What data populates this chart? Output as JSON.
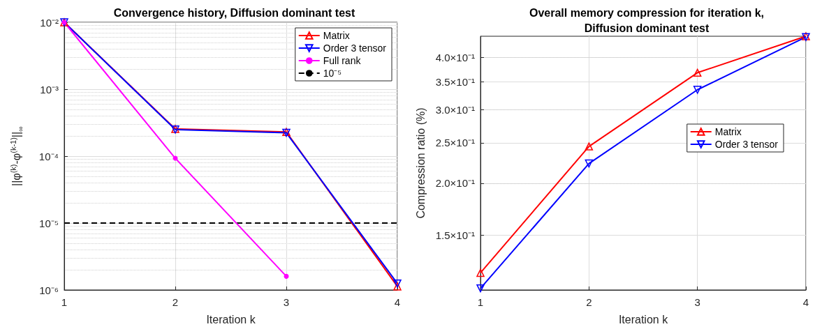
{
  "chart_data": [
    {
      "type": "line",
      "title": "Convergence history, Diffusion dominant test",
      "xlabel": "Iteration k",
      "ylabel": "||φ$^{(k)}$-φ$^{(k-1)}$||$_{∞}$",
      "x": [
        1,
        2,
        3,
        4
      ],
      "xlim": [
        1,
        4
      ],
      "xticks": [
        1,
        2,
        3,
        4
      ],
      "ylim": [
        1e-06,
        0.01
      ],
      "yticks": [
        {
          "value": 1e-06,
          "label": "10⁻⁶"
        },
        {
          "value": 1e-05,
          "label": "10⁻⁵"
        },
        {
          "value": 0.0001,
          "label": "10⁻⁴"
        },
        {
          "value": 0.001,
          "label": "10⁻³"
        },
        {
          "value": 0.01,
          "label": "10⁻²"
        }
      ],
      "log": "y",
      "grid": true,
      "legend": "top right",
      "series": [
        {
          "name": "Matrix",
          "color": "#ff0000",
          "marker": "triangle",
          "values": [
            0.01,
            0.000255,
            0.00023,
            1.13e-06
          ]
        },
        {
          "name": "Order 3 tensor",
          "color": "#0000ff",
          "marker": "triangle-down",
          "values": [
            0.01,
            0.00025,
            0.000223,
            1.25e-06
          ]
        },
        {
          "name": "Full rank",
          "color": "#ff00ff",
          "marker": "circle",
          "values": [
            0.01,
            9.3e-05,
            1.6e-06,
            null
          ]
        }
      ],
      "ref_lines": [
        {
          "axis": "y",
          "value": 1e-05,
          "label": "10⁻⁵",
          "color": "#000000",
          "line_style": "dashed"
        }
      ]
    },
    {
      "type": "line",
      "title": "Overall memory compression for iteration k,\nDiffusion dominant test",
      "xlabel": "Iteration k",
      "ylabel": "Compression ratio (%)",
      "x": [
        1,
        2,
        3,
        4
      ],
      "xlim": [
        1,
        4
      ],
      "xticks": [
        1,
        2,
        3,
        4
      ],
      "ylim": [
        0.111,
        0.45
      ],
      "yticks": [
        {
          "value": 0.15,
          "label": "1.5×10⁻¹"
        },
        {
          "value": 0.2,
          "label": "2.0×10⁻¹"
        },
        {
          "value": 0.25,
          "label": "2.5×10⁻¹"
        },
        {
          "value": 0.3,
          "label": "3.0×10⁻¹"
        },
        {
          "value": 0.35,
          "label": "3.5×10⁻¹"
        },
        {
          "value": 0.4,
          "label": "4.0×10⁻¹"
        }
      ],
      "log": "y",
      "grid": true,
      "legend": "right",
      "series": [
        {
          "name": "Matrix",
          "color": "#ff0000",
          "marker": "triangle",
          "values": [
            0.122,
            0.245,
            0.368,
            0.45
          ]
        },
        {
          "name": "Order 3 tensor",
          "color": "#0000ff",
          "marker": "triangle-down",
          "values": [
            0.112,
            0.223,
            0.335,
            0.448
          ]
        }
      ]
    }
  ]
}
